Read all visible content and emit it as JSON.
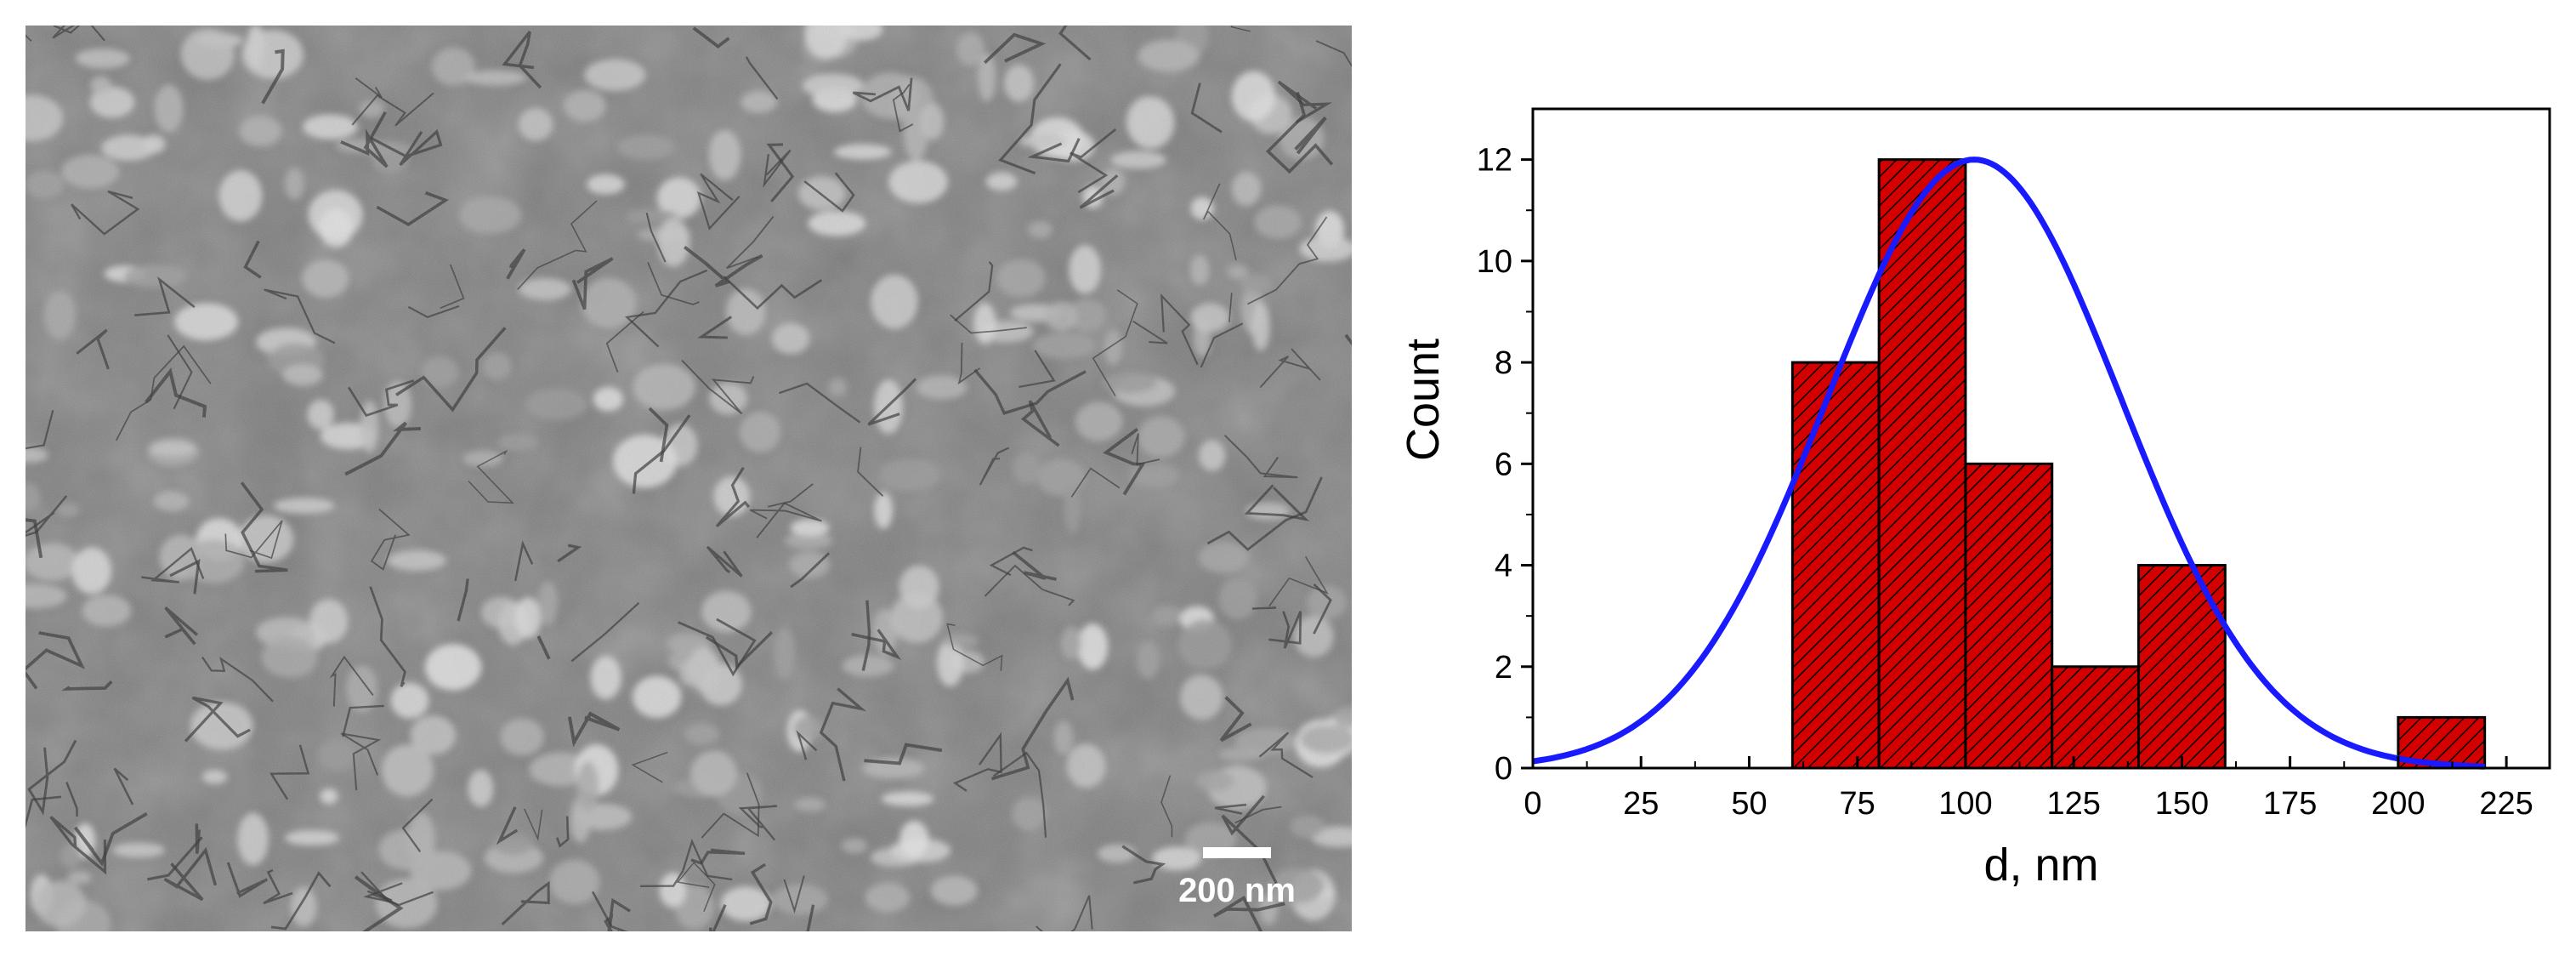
{
  "sem_image": {
    "scale_bar_label": "200 nm"
  },
  "chart_data": {
    "type": "bar",
    "subtype": "histogram",
    "bins": [
      {
        "start": 60,
        "end": 80,
        "count": 8
      },
      {
        "start": 80,
        "end": 100,
        "count": 12
      },
      {
        "start": 100,
        "end": 120,
        "count": 6
      },
      {
        "start": 120,
        "end": 140,
        "count": 2
      },
      {
        "start": 140,
        "end": 160,
        "count": 4
      },
      {
        "start": 200,
        "end": 220,
        "count": 1
      }
    ],
    "fit": {
      "type": "gaussian",
      "center": 102,
      "amplitude": 12,
      "sigma": 34
    },
    "xlabel": "d, nm",
    "ylabel": "Count",
    "xlim": [
      0,
      235
    ],
    "ylim": [
      0,
      13
    ],
    "xticks": [
      0,
      25,
      50,
      75,
      100,
      125,
      150,
      175,
      200,
      225
    ],
    "yticks": [
      0,
      2,
      4,
      6,
      8,
      10,
      12
    ],
    "bar_color": "#d40000",
    "bar_hatch_color": "#000000",
    "fit_color": "#1a1aff",
    "grid": false,
    "legend": "none"
  }
}
